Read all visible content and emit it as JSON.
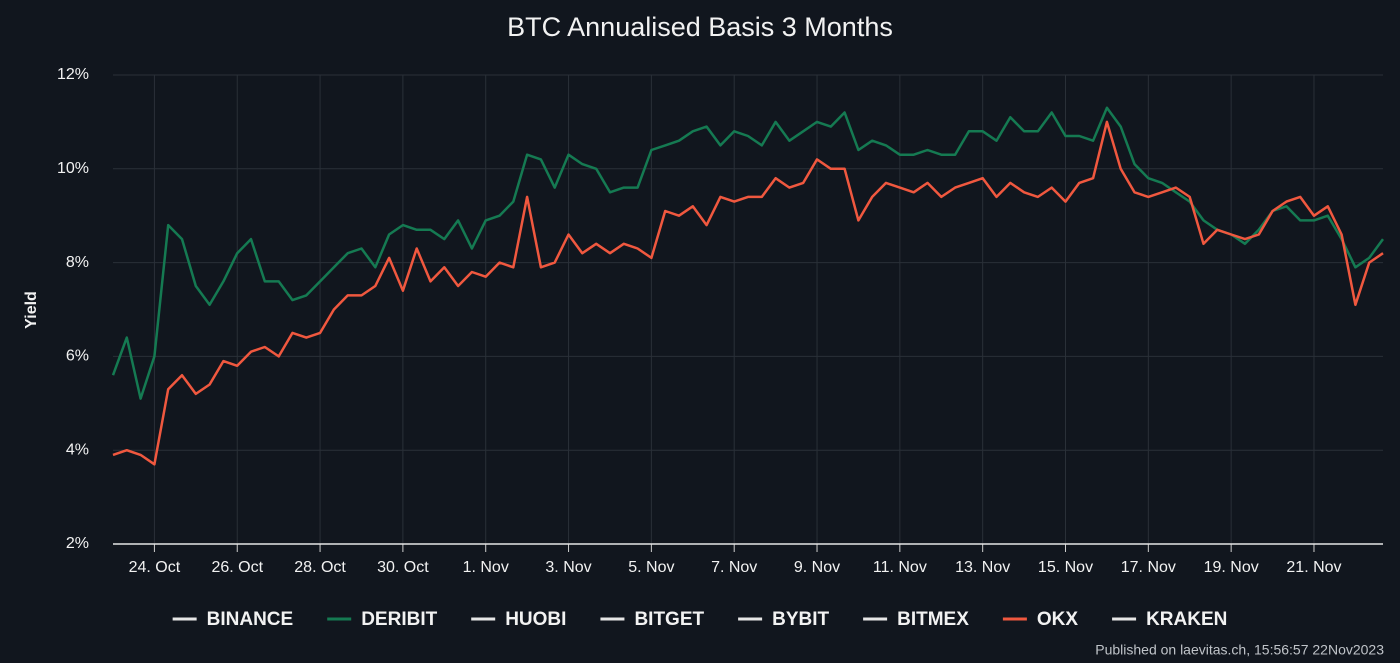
{
  "chart_data": {
    "type": "line",
    "title": "BTC Annualised Basis 3 Months",
    "y_label": "Yield",
    "footnote": "Published on laevitas.ch, 15:56:57 22Nov2023",
    "categories": [
      null,
      null,
      null,
      "24. Oct",
      null,
      null,
      null,
      null,
      null,
      "26. Oct",
      null,
      null,
      null,
      null,
      null,
      "28. Oct",
      null,
      null,
      null,
      null,
      null,
      "30. Oct",
      null,
      null,
      null,
      null,
      null,
      "1. Nov",
      null,
      null,
      null,
      null,
      null,
      "3. Nov",
      null,
      null,
      null,
      null,
      null,
      "5. Nov",
      null,
      null,
      null,
      null,
      null,
      "7. Nov",
      null,
      null,
      null,
      null,
      null,
      "9. Nov",
      null,
      null,
      null,
      null,
      null,
      "11. Nov",
      null,
      null,
      null,
      null,
      null,
      "13. Nov",
      null,
      null,
      null,
      null,
      null,
      "15. Nov",
      null,
      null,
      null,
      null,
      null,
      "17. Nov",
      null,
      null,
      null,
      null,
      null,
      "19. Nov",
      null,
      null,
      null,
      null,
      null,
      "21. Nov",
      null,
      null,
      null,
      null,
      null
    ],
    "ylim": [
      2,
      12
    ],
    "yticks": [
      {
        "value": 2,
        "label": "2%"
      },
      {
        "value": 4,
        "label": "4%"
      },
      {
        "value": 6,
        "label": "6%"
      },
      {
        "value": 8,
        "label": "8%"
      },
      {
        "value": 10,
        "label": "10%"
      },
      {
        "value": 12,
        "label": "12%"
      }
    ],
    "grid": true,
    "series": [
      {
        "name": "BINANCE",
        "color": "#e6e6e6",
        "values": [
          null,
          null,
          null,
          null,
          null,
          null,
          null,
          null,
          null,
          null,
          null,
          null,
          null,
          null,
          null,
          null,
          null,
          null,
          null,
          null,
          null,
          null,
          null,
          null,
          null,
          null,
          null,
          null,
          null,
          null,
          null,
          null,
          null,
          null,
          null,
          null,
          null,
          null,
          null,
          null,
          null,
          null,
          null,
          null,
          null,
          null,
          null,
          null,
          null,
          null,
          null,
          null,
          null,
          null,
          null,
          null,
          null,
          null,
          null,
          null,
          null,
          null,
          null,
          null,
          null,
          null,
          null,
          null,
          null,
          null,
          null,
          null,
          null,
          null,
          null,
          null,
          null,
          null,
          null,
          null,
          null,
          null,
          null,
          null,
          null,
          null,
          null,
          null,
          null,
          null,
          null,
          null,
          null
        ]
      },
      {
        "name": "DERIBIT",
        "color": "#157a52",
        "values": [
          5.6,
          6.4,
          5.1,
          6.0,
          8.8,
          8.5,
          7.5,
          7.1,
          7.6,
          8.2,
          8.5,
          7.6,
          7.6,
          7.2,
          7.3,
          7.6,
          7.9,
          8.2,
          8.3,
          7.9,
          8.6,
          8.8,
          8.7,
          8.7,
          8.5,
          8.9,
          8.3,
          8.9,
          9.0,
          9.3,
          10.3,
          10.2,
          9.6,
          10.3,
          10.1,
          10.0,
          9.5,
          9.6,
          9.6,
          10.4,
          10.5,
          10.6,
          10.8,
          10.9,
          10.5,
          10.8,
          10.7,
          10.5,
          11.0,
          10.6,
          10.8,
          11.0,
          10.9,
          11.2,
          10.4,
          10.6,
          10.5,
          10.3,
          10.3,
          10.4,
          10.3,
          10.3,
          10.8,
          10.8,
          10.6,
          11.1,
          10.8,
          10.8,
          11.2,
          10.7,
          10.7,
          10.6,
          11.3,
          10.9,
          10.1,
          9.8,
          9.7,
          9.5,
          9.3,
          8.9,
          8.7,
          8.6,
          8.4,
          8.7,
          9.1,
          9.2,
          8.9,
          8.9,
          9.0,
          8.5,
          7.9,
          8.1,
          8.5
        ]
      },
      {
        "name": "HUOBI",
        "color": "#e6e6e6",
        "values": [
          null,
          null,
          null,
          null,
          null,
          null,
          null,
          null,
          null,
          null,
          null,
          null,
          null,
          null,
          null,
          null,
          null,
          null,
          null,
          null,
          null,
          null,
          null,
          null,
          null,
          null,
          null,
          null,
          null,
          null,
          null,
          null,
          null,
          null,
          null,
          null,
          null,
          null,
          null,
          null,
          null,
          null,
          null,
          null,
          null,
          null,
          null,
          null,
          null,
          null,
          null,
          null,
          null,
          null,
          null,
          null,
          null,
          null,
          null,
          null,
          null,
          null,
          null,
          null,
          null,
          null,
          null,
          null,
          null,
          null,
          null,
          null,
          null,
          null,
          null,
          null,
          null,
          null,
          null,
          null,
          null,
          null,
          null,
          null,
          null,
          null,
          null,
          null,
          null,
          null,
          null,
          null,
          null
        ]
      },
      {
        "name": "BITGET",
        "color": "#e6e6e6",
        "values": [
          null,
          null,
          null,
          null,
          null,
          null,
          null,
          null,
          null,
          null,
          null,
          null,
          null,
          null,
          null,
          null,
          null,
          null,
          null,
          null,
          null,
          null,
          null,
          null,
          null,
          null,
          null,
          null,
          null,
          null,
          null,
          null,
          null,
          null,
          null,
          null,
          null,
          null,
          null,
          null,
          null,
          null,
          null,
          null,
          null,
          null,
          null,
          null,
          null,
          null,
          null,
          null,
          null,
          null,
          null,
          null,
          null,
          null,
          null,
          null,
          null,
          null,
          null,
          null,
          null,
          null,
          null,
          null,
          null,
          null,
          null,
          null,
          null,
          null,
          null,
          null,
          null,
          null,
          null,
          null,
          null,
          null,
          null,
          null,
          null,
          null,
          null,
          null,
          null,
          null,
          null,
          null,
          null
        ]
      },
      {
        "name": "BYBIT",
        "color": "#e6e6e6",
        "values": [
          null,
          null,
          null,
          null,
          null,
          null,
          null,
          null,
          null,
          null,
          null,
          null,
          null,
          null,
          null,
          null,
          null,
          null,
          null,
          null,
          null,
          null,
          null,
          null,
          null,
          null,
          null,
          null,
          null,
          null,
          null,
          null,
          null,
          null,
          null,
          null,
          null,
          null,
          null,
          null,
          null,
          null,
          null,
          null,
          null,
          null,
          null,
          null,
          null,
          null,
          null,
          null,
          null,
          null,
          null,
          null,
          null,
          null,
          null,
          null,
          null,
          null,
          null,
          null,
          null,
          null,
          null,
          null,
          null,
          null,
          null,
          null,
          null,
          null,
          null,
          null,
          null,
          null,
          null,
          null,
          null,
          null,
          null,
          null,
          null,
          null,
          null,
          null,
          null,
          null,
          null,
          null,
          null
        ]
      },
      {
        "name": "BITMEX",
        "color": "#e6e6e6",
        "values": [
          null,
          null,
          null,
          null,
          null,
          null,
          null,
          null,
          null,
          null,
          null,
          null,
          null,
          null,
          null,
          null,
          null,
          null,
          null,
          null,
          null,
          null,
          null,
          null,
          null,
          null,
          null,
          null,
          null,
          null,
          null,
          null,
          null,
          null,
          null,
          null,
          null,
          null,
          null,
          null,
          null,
          null,
          null,
          null,
          null,
          null,
          null,
          null,
          null,
          null,
          null,
          null,
          null,
          null,
          null,
          null,
          null,
          null,
          null,
          null,
          null,
          null,
          null,
          null,
          null,
          null,
          null,
          null,
          null,
          null,
          null,
          null,
          null,
          null,
          null,
          null,
          null,
          null,
          null,
          null,
          null,
          null,
          null,
          null,
          null,
          null,
          null,
          null,
          null,
          null,
          null,
          null,
          null
        ]
      },
      {
        "name": "OKX",
        "color": "#f0583f",
        "values": [
          3.9,
          4.0,
          3.9,
          3.7,
          5.3,
          5.6,
          5.2,
          5.4,
          5.9,
          5.8,
          6.1,
          6.2,
          6.0,
          6.5,
          6.4,
          6.5,
          7.0,
          7.3,
          7.3,
          7.5,
          8.1,
          7.4,
          8.3,
          7.6,
          7.9,
          7.5,
          7.8,
          7.7,
          8.0,
          7.9,
          9.4,
          7.9,
          8.0,
          8.6,
          8.2,
          8.4,
          8.2,
          8.4,
          8.3,
          8.1,
          9.1,
          9.0,
          9.2,
          8.8,
          9.4,
          9.3,
          9.4,
          9.4,
          9.8,
          9.6,
          9.7,
          10.2,
          10.0,
          10.0,
          8.9,
          9.4,
          9.7,
          9.6,
          9.5,
          9.7,
          9.4,
          9.6,
          9.7,
          9.8,
          9.4,
          9.7,
          9.5,
          9.4,
          9.6,
          9.3,
          9.7,
          9.8,
          11.0,
          10.0,
          9.5,
          9.4,
          9.5,
          9.6,
          9.4,
          8.4,
          8.7,
          8.6,
          8.5,
          8.6,
          9.1,
          9.3,
          9.4,
          9.0,
          9.2,
          8.6,
          7.1,
          8.0,
          8.2
        ]
      },
      {
        "name": "KRAKEN",
        "color": "#e6e6e6",
        "values": [
          null,
          null,
          null,
          null,
          null,
          null,
          null,
          null,
          null,
          null,
          null,
          null,
          null,
          null,
          null,
          null,
          null,
          null,
          null,
          null,
          null,
          null,
          null,
          null,
          null,
          null,
          null,
          null,
          null,
          null,
          null,
          null,
          null,
          null,
          null,
          null,
          null,
          null,
          null,
          null,
          null,
          null,
          null,
          null,
          null,
          null,
          null,
          null,
          null,
          null,
          null,
          null,
          null,
          null,
          null,
          null,
          null,
          null,
          null,
          null,
          null,
          null,
          null,
          null,
          null,
          null,
          null,
          null,
          null,
          null,
          null,
          null,
          null,
          null,
          null,
          null,
          null,
          null,
          null,
          null,
          null,
          null,
          null,
          null,
          null,
          null,
          null,
          null,
          null,
          null,
          null,
          null,
          null
        ]
      }
    ]
  }
}
